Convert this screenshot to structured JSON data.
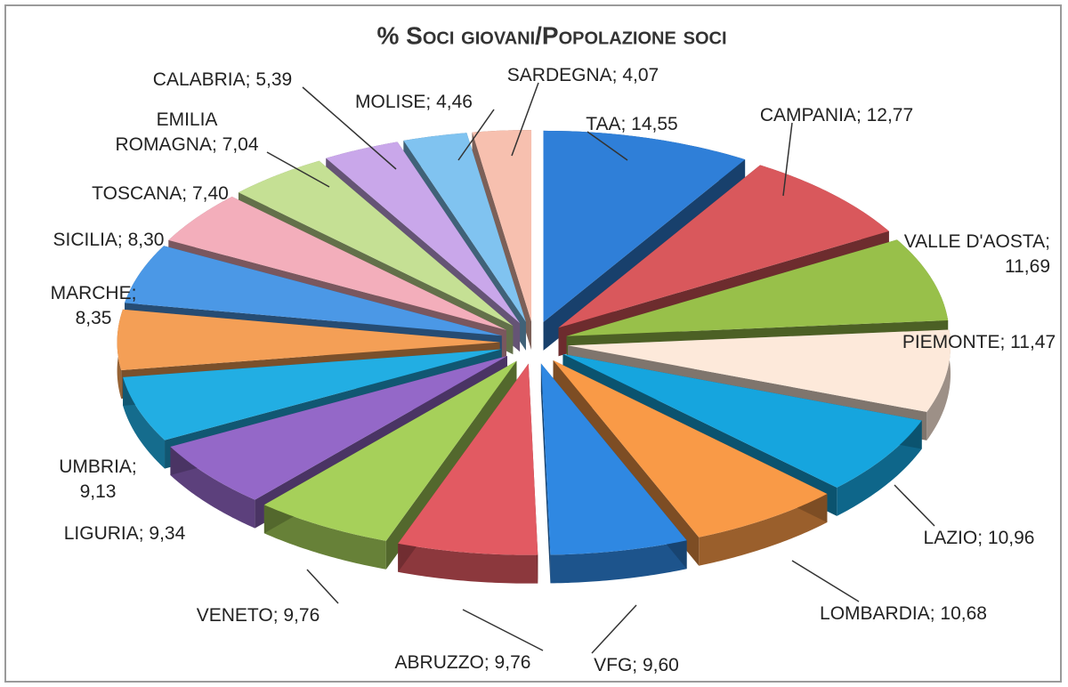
{
  "chart_data": {
    "type": "pie3d",
    "title": "% Soci giovani/Popolazione soci",
    "labels": [
      [
        "TAA; 14,55"
      ],
      [
        "CAMPANIA; 12,77"
      ],
      [
        "VALLE D'AOSTA;",
        "11,69"
      ],
      [
        "PIEMONTE; 11,47"
      ],
      [
        "LAZIO; 10,96"
      ],
      [
        "LOMBARDIA; 10,68"
      ],
      [
        "VFG; 9,60"
      ],
      [
        "ABRUZZO; 9,76"
      ],
      [
        "VENETO; 9,76"
      ],
      [
        "LIGURIA; 9,34"
      ],
      [
        "UMBRIA;",
        "9,13"
      ],
      [
        "MARCHE;",
        "8,35"
      ],
      [
        "SICILIA; 8,30"
      ],
      [
        "TOSCANA; 7,40"
      ],
      [
        "EMILIA",
        "ROMAGNA; 7,04"
      ],
      [
        "CALABRIA; 5,39"
      ],
      [
        "MOLISE; 4,46"
      ],
      [
        "SARDEGNA; 4,07"
      ]
    ],
    "values": [
      14.55,
      12.77,
      11.69,
      11.47,
      10.96,
      10.68,
      9.6,
      9.76,
      9.76,
      9.34,
      9.13,
      8.35,
      8.3,
      7.4,
      7.04,
      5.39,
      4.46,
      4.07
    ],
    "colors": [
      "#2f7fd8",
      "#d9585c",
      "#98c04a",
      "#fde9da",
      "#16a5de",
      "#f99a47",
      "#2f88e2",
      "#e25a62",
      "#a6d05a",
      "#9468c8",
      "#22aee3",
      "#f49f56",
      "#4b98e6",
      "#f3aebb",
      "#c5e094",
      "#c9a7ea",
      "#80c3f0",
      "#f7c0af"
    ]
  }
}
